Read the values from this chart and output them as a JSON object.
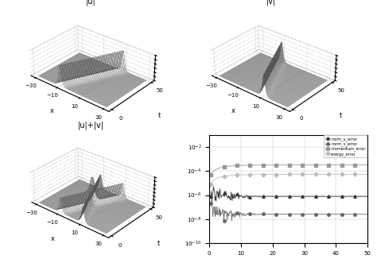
{
  "title_ul": "|u|",
  "title_vl": "|v|",
  "title_ulvl": "|u|+|v|",
  "x_range": [
    -30,
    30
  ],
  "t_range": [
    0,
    50
  ],
  "x_label": "x",
  "t_label": "t",
  "x_ticks": [
    -30,
    -10,
    10,
    30
  ],
  "t_ticks": [
    0,
    50
  ],
  "log_xlabel": "t",
  "log_xticks": [
    0,
    10,
    20,
    30,
    40,
    50
  ],
  "log_ylim": [
    1e-10,
    0.1
  ],
  "legend_labels": [
    "norm_u_error",
    "norm_v_error",
    "momentum_error",
    "energy_error"
  ],
  "line_color": "#555555",
  "elev": 30,
  "azim": -50
}
